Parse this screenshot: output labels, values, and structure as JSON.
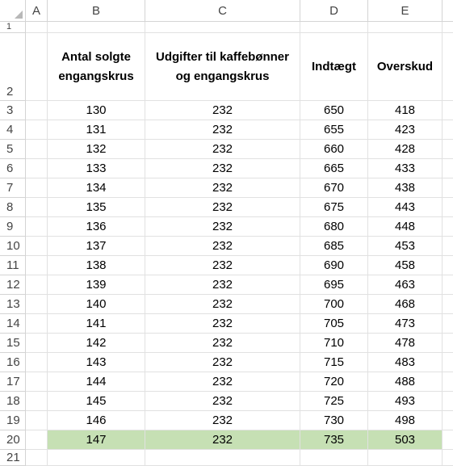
{
  "columns": [
    "A",
    "B",
    "C",
    "D",
    "E"
  ],
  "header_row_number": "2",
  "headers": {
    "b_line1": "Antal solgte",
    "b_line2": "engangskrus",
    "c_line1": "Udgifter til kaffebønner",
    "c_line2": "og engangskrus",
    "d": "Indtægt",
    "e": "Overskud"
  },
  "rows": [
    {
      "n": "3",
      "b": "130",
      "c": "232",
      "d": "650",
      "e": "418"
    },
    {
      "n": "4",
      "b": "131",
      "c": "232",
      "d": "655",
      "e": "423"
    },
    {
      "n": "5",
      "b": "132",
      "c": "232",
      "d": "660",
      "e": "428"
    },
    {
      "n": "6",
      "b": "133",
      "c": "232",
      "d": "665",
      "e": "433"
    },
    {
      "n": "7",
      "b": "134",
      "c": "232",
      "d": "670",
      "e": "438"
    },
    {
      "n": "8",
      "b": "135",
      "c": "232",
      "d": "675",
      "e": "443"
    },
    {
      "n": "9",
      "b": "136",
      "c": "232",
      "d": "680",
      "e": "448"
    },
    {
      "n": "10",
      "b": "137",
      "c": "232",
      "d": "685",
      "e": "453"
    },
    {
      "n": "11",
      "b": "138",
      "c": "232",
      "d": "690",
      "e": "458"
    },
    {
      "n": "12",
      "b": "139",
      "c": "232",
      "d": "695",
      "e": "463"
    },
    {
      "n": "13",
      "b": "140",
      "c": "232",
      "d": "700",
      "e": "468"
    },
    {
      "n": "14",
      "b": "141",
      "c": "232",
      "d": "705",
      "e": "473"
    },
    {
      "n": "15",
      "b": "142",
      "c": "232",
      "d": "710",
      "e": "478"
    },
    {
      "n": "16",
      "b": "143",
      "c": "232",
      "d": "715",
      "e": "483"
    },
    {
      "n": "17",
      "b": "144",
      "c": "232",
      "d": "720",
      "e": "488"
    },
    {
      "n": "18",
      "b": "145",
      "c": "232",
      "d": "725",
      "e": "493"
    },
    {
      "n": "19",
      "b": "146",
      "c": "232",
      "d": "730",
      "e": "498"
    },
    {
      "n": "20",
      "b": "147",
      "c": "232",
      "d": "735",
      "e": "503"
    }
  ],
  "highlighted_row": "20",
  "first_row_number": "1",
  "last_row_number": "21",
  "colors": {
    "highlight": "#c6e0b4",
    "gridline": "#e1e1e1"
  }
}
